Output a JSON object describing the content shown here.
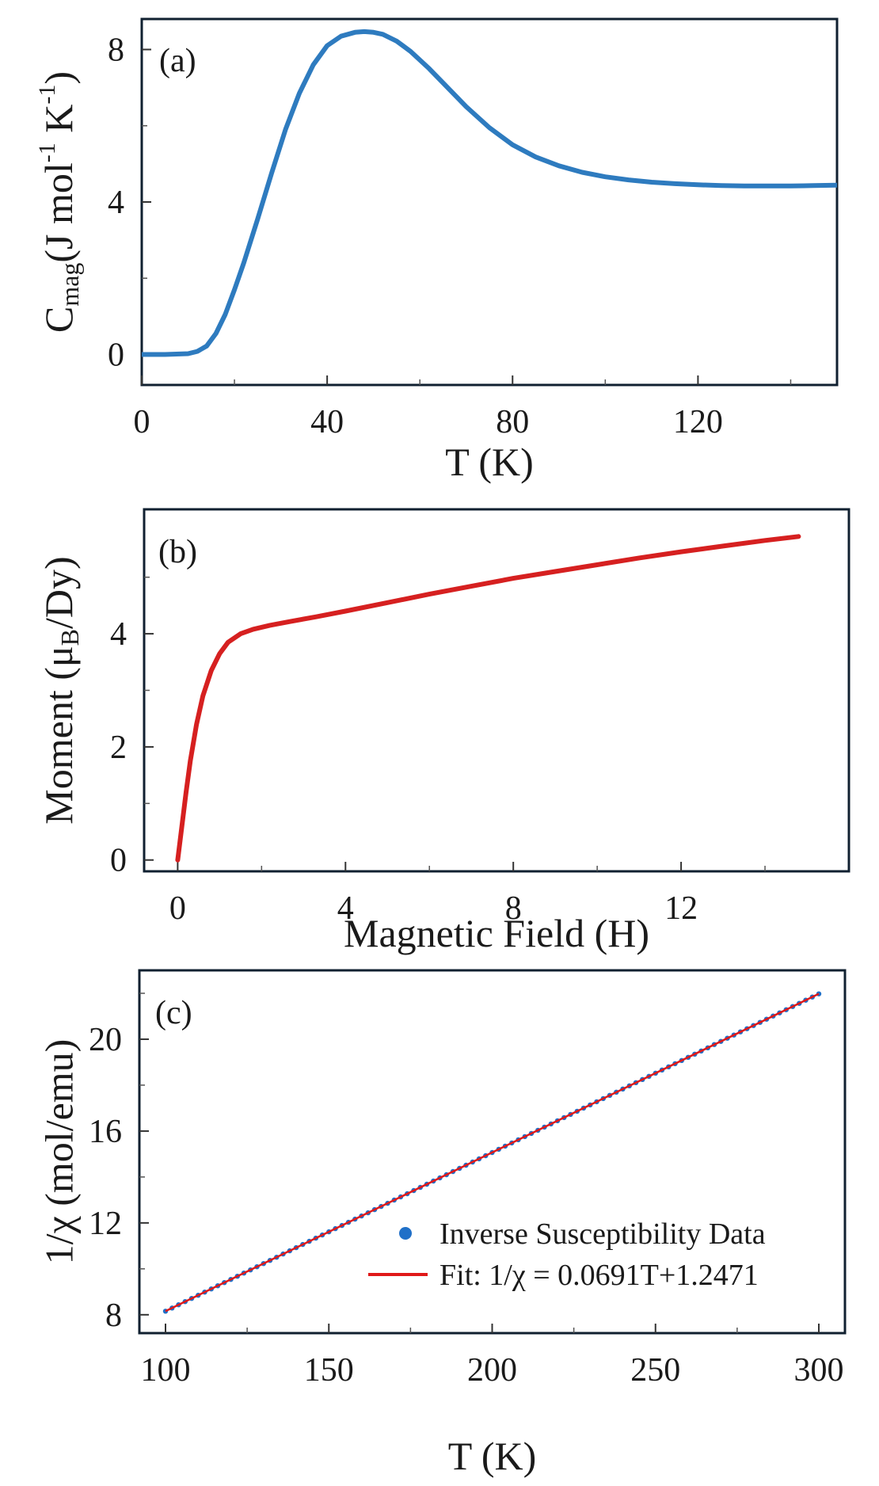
{
  "chart_data": [
    {
      "type": "line",
      "panel": "(a)",
      "xlabel": "T (K)",
      "ylabel": {
        "base": "C",
        "sub": "mag",
        "rest": "(J mol",
        "sup1": "-1",
        "mid": " K",
        "sup2": "-1",
        "end": ")"
      },
      "xlim": [
        0,
        150
      ],
      "ylim": [
        -0.8,
        8.8
      ],
      "xticks": [
        0,
        40,
        80,
        120
      ],
      "xtick_labels": [
        "0",
        "40",
        "80",
        "120"
      ],
      "yticks": [
        0,
        4,
        8
      ],
      "ytick_labels": [
        "0",
        "4",
        "8"
      ],
      "xminor": [
        20,
        60,
        100,
        140
      ],
      "yminor": [
        2,
        6
      ],
      "series": [
        {
          "name": "C_mag",
          "color": "#2e7bbf",
          "x": [
            0,
            5,
            10,
            12,
            14,
            16,
            18,
            20,
            22,
            25,
            28,
            31,
            34,
            37,
            40,
            43,
            46,
            48,
            50,
            52,
            55,
            58,
            62,
            66,
            70,
            75,
            80,
            85,
            90,
            95,
            100,
            105,
            110,
            115,
            120,
            125,
            130,
            135,
            140,
            145,
            150
          ],
          "y": [
            0,
            0,
            0.02,
            0.08,
            0.22,
            0.55,
            1.05,
            1.7,
            2.4,
            3.55,
            4.75,
            5.9,
            6.85,
            7.6,
            8.1,
            8.35,
            8.45,
            8.47,
            8.45,
            8.4,
            8.22,
            7.95,
            7.5,
            7.0,
            6.5,
            5.95,
            5.5,
            5.18,
            4.95,
            4.78,
            4.66,
            4.58,
            4.52,
            4.48,
            4.45,
            4.43,
            4.42,
            4.42,
            4.42,
            4.43,
            4.44
          ]
        }
      ]
    },
    {
      "type": "line",
      "panel": "(b)",
      "xlabel": "Magnetic Field (H)",
      "ylabel": {
        "pre": "Moment (μ",
        "sub": "B",
        "post": "/Dy)"
      },
      "xlim": [
        -0.8,
        16
      ],
      "ylim": [
        -0.2,
        6.2
      ],
      "xticks": [
        0,
        4,
        8,
        12
      ],
      "xtick_labels": [
        "0",
        "4",
        "8",
        "12"
      ],
      "yticks": [
        0,
        2,
        4
      ],
      "ytick_labels": [
        "0",
        "2",
        "4"
      ],
      "xminor": [
        2,
        6,
        10,
        14
      ],
      "yminor": [
        1,
        3,
        5
      ],
      "series": [
        {
          "name": "Moment",
          "color": "#d62020",
          "x": [
            0,
            0.1,
            0.2,
            0.3,
            0.45,
            0.6,
            0.8,
            1.0,
            1.2,
            1.5,
            1.8,
            2.2,
            2.7,
            3.3,
            4,
            5,
            6,
            7,
            8,
            9,
            10,
            11,
            12,
            13,
            14,
            14.8
          ],
          "y": [
            0,
            0.6,
            1.2,
            1.75,
            2.4,
            2.9,
            3.35,
            3.65,
            3.85,
            4.0,
            4.08,
            4.15,
            4.22,
            4.3,
            4.4,
            4.55,
            4.7,
            4.84,
            4.98,
            5.1,
            5.22,
            5.34,
            5.45,
            5.55,
            5.65,
            5.72
          ]
        }
      ]
    },
    {
      "type": "scatter",
      "panel": "(c)",
      "xlabel": "T (K)",
      "ylabel": "1/χ (mol/emu)",
      "xlim": [
        92,
        308
      ],
      "ylim": [
        7.2,
        23
      ],
      "xticks": [
        100,
        150,
        200,
        250,
        300
      ],
      "xtick_labels": [
        "100",
        "150",
        "200",
        "250",
        "300"
      ],
      "yticks": [
        8,
        12,
        16,
        20
      ],
      "ytick_labels": [
        "8",
        "12",
        "16",
        "20"
      ],
      "xminor": [
        125,
        175,
        225,
        275
      ],
      "yminor": [
        10,
        14,
        18,
        22
      ],
      "data_series": {
        "name": "Inverse Susceptibility Data",
        "color": "#2070c8",
        "t_start": 100,
        "t_end": 300,
        "t_step": 2
      },
      "fit": {
        "name": "Fit: 1/χ = 0.0691T+1.2471",
        "color": "#e01818",
        "slope": 0.0691,
        "intercept": 1.2471
      },
      "legend": {
        "position": "lower-right"
      }
    }
  ]
}
